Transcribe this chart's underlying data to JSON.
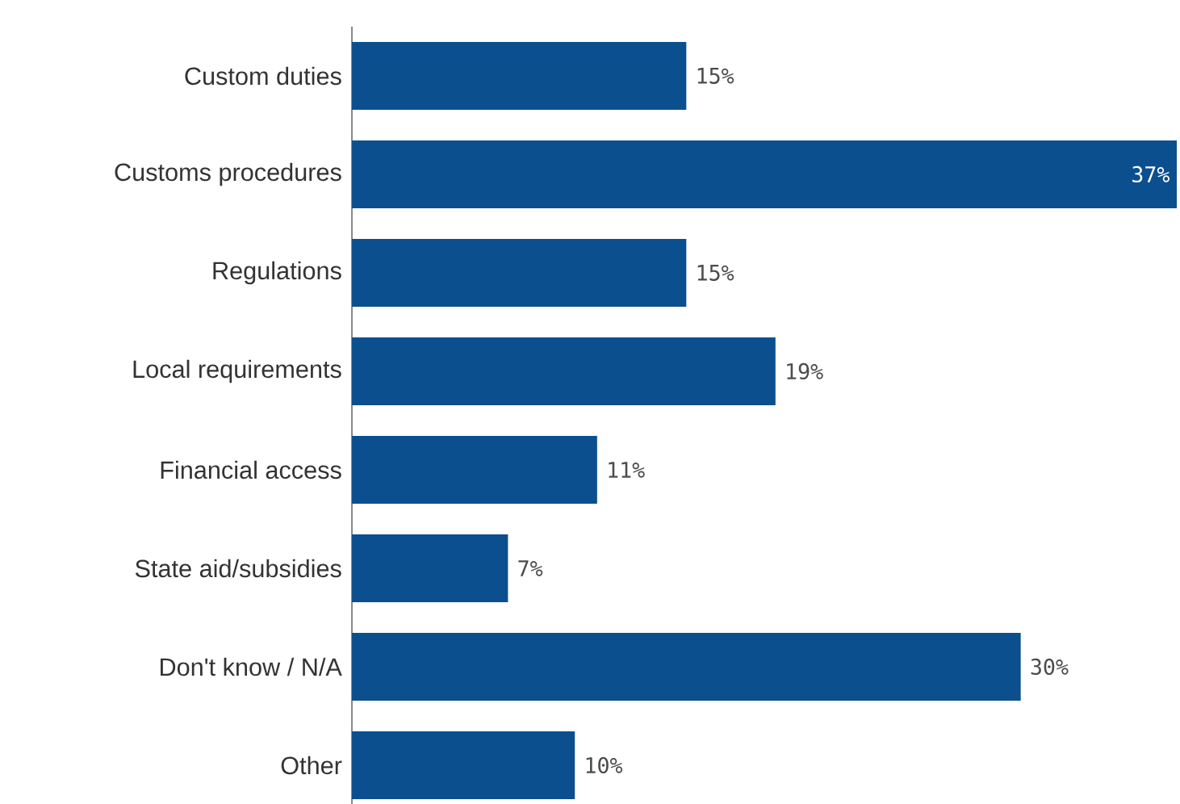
{
  "chart_data": {
    "type": "bar",
    "orientation": "horizontal",
    "color": "#0b4f8f",
    "categories": [
      "Custom duties",
      "Customs procedures",
      "Regulations",
      "Local requirements",
      "Financial access",
      "State aid/subsidies",
      "Don't know / N/A",
      "Other"
    ],
    "values": [
      15,
      37,
      15,
      19,
      11,
      7,
      30,
      10
    ],
    "value_labels": [
      "15%",
      "37%",
      "15%",
      "19%",
      "11%",
      "7%",
      "30%",
      "10%"
    ]
  }
}
